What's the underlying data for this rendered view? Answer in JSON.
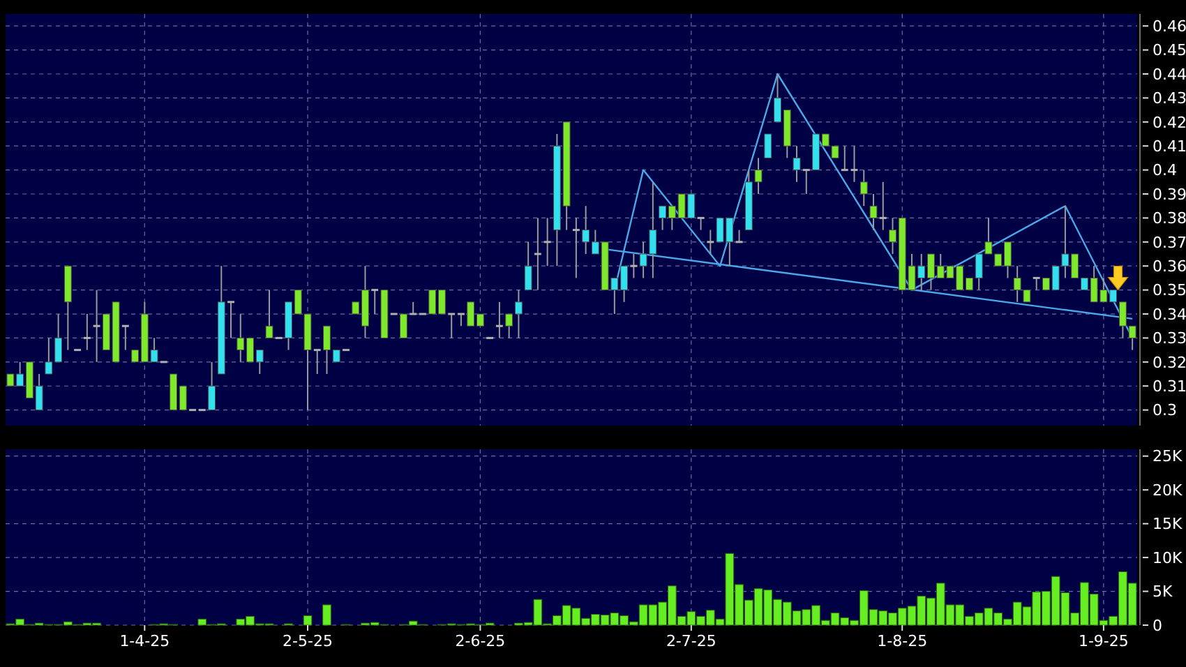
{
  "chart_data": [
    {
      "type": "candlestick",
      "tick_labels": "y",
      "grid": true,
      "categories": [
        null,
        null,
        null,
        null,
        null,
        null,
        null,
        null,
        null,
        null,
        null,
        null,
        null,
        null,
        null,
        null,
        null,
        null,
        null,
        null,
        null,
        null,
        null,
        null,
        null,
        null,
        null,
        null,
        null,
        null,
        null,
        null,
        null,
        null,
        null,
        null,
        null,
        null,
        null,
        null,
        null,
        null,
        null,
        null,
        null,
        null,
        null,
        null,
        null,
        null,
        null,
        null,
        null,
        null,
        null,
        null,
        null,
        null,
        null,
        null,
        null,
        null,
        null,
        null,
        null,
        null,
        null,
        null,
        null,
        null,
        null,
        null,
        null,
        null,
        null,
        null,
        null,
        null,
        null,
        null,
        null,
        null,
        null,
        null,
        null,
        null,
        null,
        null,
        null,
        null,
        null,
        null,
        null,
        null,
        null,
        null,
        null,
        null,
        null,
        null,
        null,
        null,
        null,
        null,
        null,
        null,
        null,
        null,
        null,
        null,
        null,
        null,
        null,
        null,
        null,
        null,
        null,
        null
      ],
      "ohlc": [
        [
          0.315,
          0.315,
          0.31,
          0.31
        ],
        [
          0.31,
          0.32,
          0.31,
          0.315
        ],
        [
          0.32,
          0.32,
          0.305,
          0.305
        ],
        [
          0.3,
          0.315,
          0.3,
          0.31
        ],
        [
          0.315,
          0.33,
          0.315,
          0.32
        ],
        [
          0.32,
          0.34,
          0.32,
          0.33
        ],
        [
          0.36,
          0.36,
          0.325,
          0.345
        ],
        [
          0.325,
          0.325,
          0.325,
          0.325
        ],
        [
          0.33,
          0.34,
          0.325,
          0.33
        ],
        [
          0.335,
          0.35,
          0.32,
          0.335
        ],
        [
          0.34,
          0.34,
          0.325,
          0.325
        ],
        [
          0.345,
          0.345,
          0.32,
          0.32
        ],
        [
          0.335,
          0.335,
          0.325,
          0.335
        ],
        [
          0.325,
          0.325,
          0.32,
          0.32
        ],
        [
          0.34,
          0.345,
          0.32,
          0.32
        ],
        [
          0.32,
          0.33,
          0.32,
          0.325
        ],
        [
          0.32,
          0.32,
          0.32,
          0.32
        ],
        [
          0.315,
          0.315,
          0.3,
          0.3
        ],
        [
          0.31,
          0.31,
          0.3,
          0.3
        ],
        [
          0.3,
          0.3,
          0.3,
          0.3
        ],
        [
          0.3,
          0.3,
          0.3,
          0.3
        ],
        [
          0.3,
          0.32,
          0.3,
          0.31
        ],
        [
          0.315,
          0.36,
          0.315,
          0.345
        ],
        [
          0.345,
          0.345,
          0.33,
          0.345
        ],
        [
          0.33,
          0.34,
          0.32,
          0.325
        ],
        [
          0.33,
          0.33,
          0.32,
          0.32
        ],
        [
          0.32,
          0.325,
          0.315,
          0.325
        ],
        [
          0.335,
          0.35,
          0.33,
          0.33
        ],
        [
          0.33,
          0.33,
          0.33,
          0.33
        ],
        [
          0.33,
          0.345,
          0.325,
          0.345
        ],
        [
          0.35,
          0.35,
          0.34,
          0.34
        ],
        [
          0.34,
          0.34,
          0.3,
          0.325
        ],
        [
          0.325,
          0.325,
          0.315,
          0.325
        ],
        [
          0.335,
          0.335,
          0.315,
          0.325
        ],
        [
          0.32,
          0.325,
          0.32,
          0.325
        ],
        [
          0.325,
          0.325,
          0.325,
          0.325
        ],
        [
          0.345,
          0.345,
          0.34,
          0.34
        ],
        [
          0.35,
          0.36,
          0.33,
          0.335
        ],
        [
          0.35,
          0.35,
          0.34,
          0.35
        ],
        [
          0.35,
          0.35,
          0.33,
          0.33
        ],
        [
          0.34,
          0.34,
          0.34,
          0.34
        ],
        [
          0.34,
          0.34,
          0.33,
          0.33
        ],
        [
          0.34,
          0.345,
          0.34,
          0.34
        ],
        [
          0.34,
          0.34,
          0.34,
          0.34
        ],
        [
          0.35,
          0.35,
          0.34,
          0.34
        ],
        [
          0.35,
          0.35,
          0.34,
          0.34
        ],
        [
          0.34,
          0.34,
          0.33,
          0.34
        ],
        [
          0.34,
          0.34,
          0.335,
          0.34
        ],
        [
          0.345,
          0.345,
          0.335,
          0.335
        ],
        [
          0.34,
          0.34,
          0.335,
          0.335
        ],
        [
          0.33,
          0.33,
          0.33,
          0.33
        ],
        [
          0.335,
          0.345,
          0.33,
          0.335
        ],
        [
          0.34,
          0.34,
          0.33,
          0.335
        ],
        [
          0.34,
          0.35,
          0.33,
          0.345
        ],
        [
          0.35,
          0.37,
          0.35,
          0.36
        ],
        [
          0.365,
          0.38,
          0.35,
          0.365
        ],
        [
          0.37,
          0.38,
          0.36,
          0.37
        ],
        [
          0.375,
          0.415,
          0.36,
          0.41
        ],
        [
          0.42,
          0.42,
          0.375,
          0.385
        ],
        [
          0.375,
          0.38,
          0.355,
          0.375
        ],
        [
          0.37,
          0.385,
          0.365,
          0.375
        ],
        [
          0.365,
          0.375,
          0.365,
          0.37
        ],
        [
          0.37,
          0.37,
          0.35,
          0.35
        ],
        [
          0.35,
          0.355,
          0.34,
          0.355
        ],
        [
          0.35,
          0.36,
          0.345,
          0.36
        ],
        [
          0.36,
          0.365,
          0.355,
          0.36
        ],
        [
          0.36,
          0.37,
          0.355,
          0.365
        ],
        [
          0.365,
          0.395,
          0.355,
          0.375
        ],
        [
          0.38,
          0.385,
          0.375,
          0.385
        ],
        [
          0.385,
          0.385,
          0.375,
          0.38
        ],
        [
          0.39,
          0.39,
          0.38,
          0.38
        ],
        [
          0.38,
          0.39,
          0.38,
          0.39
        ],
        [
          0.38,
          0.38,
          0.375,
          0.38
        ],
        [
          0.37,
          0.375,
          0.365,
          0.37
        ],
        [
          0.37,
          0.38,
          0.37,
          0.38
        ],
        [
          0.37,
          0.38,
          0.36,
          0.38
        ],
        [
          0.37,
          0.375,
          0.37,
          0.37
        ],
        [
          0.375,
          0.4,
          0.375,
          0.395
        ],
        [
          0.4,
          0.405,
          0.39,
          0.395
        ],
        [
          0.405,
          0.415,
          0.405,
          0.415
        ],
        [
          0.42,
          0.44,
          0.42,
          0.43
        ],
        [
          0.425,
          0.425,
          0.405,
          0.41
        ],
        [
          0.4,
          0.41,
          0.395,
          0.405
        ],
        [
          0.4,
          0.4,
          0.39,
          0.4
        ],
        [
          0.4,
          0.415,
          0.4,
          0.415
        ],
        [
          0.415,
          0.415,
          0.41,
          0.41
        ],
        [
          0.41,
          0.41,
          0.405,
          0.405
        ],
        [
          0.4,
          0.41,
          0.4,
          0.4
        ],
        [
          0.4,
          0.41,
          0.395,
          0.4
        ],
        [
          0.395,
          0.4,
          0.385,
          0.39
        ],
        [
          0.385,
          0.39,
          0.375,
          0.38
        ],
        [
          0.38,
          0.395,
          0.375,
          0.38
        ],
        [
          0.375,
          0.38,
          0.365,
          0.37
        ],
        [
          0.38,
          0.38,
          0.35,
          0.35
        ],
        [
          0.36,
          0.365,
          0.35,
          0.35
        ],
        [
          0.355,
          0.365,
          0.35,
          0.36
        ],
        [
          0.365,
          0.365,
          0.35,
          0.355
        ],
        [
          0.36,
          0.365,
          0.355,
          0.355
        ],
        [
          0.36,
          0.36,
          0.355,
          0.355
        ],
        [
          0.36,
          0.36,
          0.35,
          0.35
        ],
        [
          0.355,
          0.355,
          0.35,
          0.35
        ],
        [
          0.355,
          0.365,
          0.35,
          0.365
        ],
        [
          0.37,
          0.38,
          0.365,
          0.365
        ],
        [
          0.365,
          0.365,
          0.36,
          0.36
        ],
        [
          0.37,
          0.37,
          0.355,
          0.36
        ],
        [
          0.355,
          0.36,
          0.345,
          0.35
        ],
        [
          0.35,
          0.35,
          0.345,
          0.345
        ],
        [
          0.355,
          0.355,
          0.35,
          0.355
        ],
        [
          0.355,
          0.355,
          0.35,
          0.35
        ],
        [
          0.35,
          0.36,
          0.35,
          0.36
        ],
        [
          0.36,
          0.385,
          0.355,
          0.365
        ],
        [
          0.365,
          0.365,
          0.355,
          0.355
        ],
        [
          0.35,
          0.355,
          0.35,
          0.355
        ],
        [
          0.355,
          0.36,
          0.345,
          0.345
        ],
        [
          0.35,
          0.355,
          0.345,
          0.345
        ],
        [
          0.345,
          0.35,
          0.345,
          0.35
        ],
        [
          0.345,
          0.345,
          0.33,
          0.335
        ],
        [
          0.335,
          0.335,
          0.325,
          0.33
        ]
      ],
      "colors": [
        "#7ee82a",
        "#33e0f0",
        "#7ee82a",
        "#33e0f0",
        "#33e0f0",
        "#33e0f0",
        "#7ee82a",
        "#a0a0a0",
        "#a0a0a0",
        "#a0a0a0",
        "#7ee82a",
        "#7ee82a",
        "#a0a0a0",
        "#7ee82a",
        "#7ee82a",
        "#33e0f0",
        "#a0a0a0",
        "#7ee82a",
        "#7ee82a",
        "#a0a0a0",
        "#a0a0a0",
        "#33e0f0",
        "#33e0f0",
        "#a0a0a0",
        "#7ee82a",
        "#7ee82a",
        "#33e0f0",
        "#7ee82a",
        "#a0a0a0",
        "#33e0f0",
        "#7ee82a",
        "#7ee82a",
        "#a0a0a0",
        "#7ee82a",
        "#33e0f0",
        "#a0a0a0",
        "#7ee82a",
        "#7ee82a",
        "#a0a0a0",
        "#7ee82a",
        "#a0a0a0",
        "#7ee82a",
        "#a0a0a0",
        "#a0a0a0",
        "#7ee82a",
        "#7ee82a",
        "#a0a0a0",
        "#a0a0a0",
        "#7ee82a",
        "#7ee82a",
        "#a0a0a0",
        "#a0a0a0",
        "#7ee82a",
        "#33e0f0",
        "#33e0f0",
        "#a0a0a0",
        "#a0a0a0",
        "#33e0f0",
        "#7ee82a",
        "#a0a0a0",
        "#33e0f0",
        "#33e0f0",
        "#7ee82a",
        "#33e0f0",
        "#33e0f0",
        "#a0a0a0",
        "#33e0f0",
        "#33e0f0",
        "#33e0f0",
        "#7ee82a",
        "#7ee82a",
        "#33e0f0",
        "#a0a0a0",
        "#a0a0a0",
        "#33e0f0",
        "#33e0f0",
        "#a0a0a0",
        "#33e0f0",
        "#7ee82a",
        "#33e0f0",
        "#33e0f0",
        "#7ee82a",
        "#33e0f0",
        "#a0a0a0",
        "#33e0f0",
        "#7ee82a",
        "#7ee82a",
        "#a0a0a0",
        "#a0a0a0",
        "#7ee82a",
        "#7ee82a",
        "#a0a0a0",
        "#7ee82a",
        "#7ee82a",
        "#7ee82a",
        "#33e0f0",
        "#7ee82a",
        "#7ee82a",
        "#7ee82a",
        "#7ee82a",
        "#7ee82a",
        "#33e0f0",
        "#7ee82a",
        "#7ee82a",
        "#7ee82a",
        "#7ee82a",
        "#7ee82a",
        "#a0a0a0",
        "#7ee82a",
        "#33e0f0",
        "#33e0f0",
        "#7ee82a",
        "#33e0f0",
        "#7ee82a",
        "#7ee82a",
        "#33e0f0",
        "#7ee82a",
        "#7ee82a"
      ],
      "series": [
        {
          "type": "line",
          "color": "#4aa8e8",
          "values": [
            null,
            null,
            null,
            null,
            null,
            null,
            null,
            null,
            null,
            null,
            null,
            null,
            null,
            null,
            null,
            null,
            null,
            null,
            null,
            null,
            null,
            null,
            null,
            null,
            null,
            null,
            null,
            null,
            null,
            null,
            null,
            null,
            null,
            null,
            null,
            null,
            null,
            null,
            null,
            null,
            null,
            null,
            null,
            null,
            null,
            null,
            null,
            null,
            null,
            null,
            null,
            null,
            null,
            null,
            null,
            null,
            null,
            null,
            null,
            null,
            null,
            null,
            null,
            0.35,
            null,
            null,
            0.4,
            null,
            null,
            null,
            null,
            null,
            null,
            null,
            0.36,
            null,
            null,
            null,
            null,
            null,
            0.44,
            null,
            null,
            null,
            null,
            null,
            null,
            null,
            null,
            null,
            null,
            null,
            null,
            null,
            0.35,
            null,
            null,
            null,
            null,
            null,
            null,
            null,
            null,
            null,
            null,
            null,
            null,
            null,
            null,
            null,
            0.385,
            null,
            null,
            null,
            null,
            null,
            null,
            0.33
          ]
        },
        {
          "type": "line",
          "color": "#4aa8e8",
          "values": [
            null,
            null,
            null,
            null,
            null,
            null,
            null,
            null,
            null,
            null,
            null,
            null,
            null,
            null,
            null,
            null,
            null,
            null,
            null,
            null,
            null,
            null,
            null,
            null,
            null,
            null,
            null,
            null,
            null,
            null,
            null,
            null,
            null,
            null,
            null,
            null,
            null,
            null,
            null,
            null,
            null,
            null,
            null,
            null,
            null,
            null,
            null,
            null,
            null,
            null,
            null,
            null,
            null,
            null,
            null,
            null,
            null,
            null,
            null,
            null,
            null,
            null,
            0.367,
            null,
            null,
            null,
            null,
            null,
            null,
            null,
            null,
            null,
            null,
            null,
            null,
            null,
            null,
            null,
            null,
            null,
            null,
            null,
            null,
            null,
            null,
            null,
            null,
            null,
            null,
            null,
            null,
            null,
            null,
            null,
            null,
            null,
            null,
            null,
            null,
            null,
            null,
            null,
            null,
            null,
            null,
            null,
            null,
            null,
            null,
            null,
            null,
            null,
            null,
            null,
            null,
            null,
            null,
            0.338
          ]
        }
      ],
      "ylim": [
        0.2935,
        0.465
      ],
      "yticks": [
        0.3,
        0.31,
        0.32,
        0.33,
        0.34,
        0.35,
        0.36,
        0.37,
        0.38,
        0.39,
        0.4,
        0.41,
        0.42,
        0.43,
        0.44,
        0.45,
        0.46
      ]
    },
    {
      "type": "bar",
      "grid": true,
      "color": "#66ee22",
      "categories": [
        null,
        null,
        null,
        null,
        null,
        null,
        null,
        null,
        null,
        null,
        null,
        null,
        null,
        null,
        "1-4-25",
        null,
        null,
        null,
        null,
        null,
        null,
        null,
        null,
        null,
        null,
        null,
        null,
        null,
        null,
        null,
        null,
        "2-5-25",
        null,
        null,
        null,
        null,
        null,
        null,
        null,
        null,
        null,
        null,
        null,
        null,
        null,
        null,
        null,
        null,
        null,
        "2-6-25",
        null,
        null,
        null,
        null,
        null,
        null,
        null,
        null,
        null,
        null,
        null,
        null,
        null,
        null,
        null,
        null,
        null,
        null,
        null,
        null,
        null,
        "2-7-25",
        null,
        null,
        null,
        null,
        null,
        null,
        null,
        null,
        null,
        null,
        null,
        null,
        null,
        null,
        null,
        null,
        null,
        null,
        null,
        null,
        null,
        "1-8-25",
        null,
        null,
        null,
        null,
        null,
        null,
        null,
        null,
        null,
        null,
        null,
        null,
        null,
        null,
        null,
        null,
        null,
        null,
        null,
        null,
        "1-9-25",
        null,
        null,
        null
      ],
      "values": [
        200,
        900,
        100,
        300,
        100,
        100,
        500,
        100,
        300,
        300,
        0,
        0,
        0,
        0,
        0,
        100,
        200,
        100,
        0,
        0,
        900,
        100,
        200,
        0,
        900,
        1300,
        200,
        200,
        0,
        200,
        0,
        1400,
        0,
        3000,
        0,
        100,
        0,
        300,
        400,
        100,
        0,
        100,
        600,
        100,
        0,
        100,
        200,
        100,
        200,
        100,
        300,
        0,
        0,
        300,
        400,
        3800,
        200,
        1400,
        2900,
        2500,
        1000,
        1600,
        1500,
        1800,
        1400,
        500,
        3000,
        3000,
        3400,
        5800,
        1300,
        2000,
        1300,
        2200,
        900,
        10600,
        6000,
        3700,
        5400,
        5200,
        3800,
        3400,
        2100,
        2300,
        2900,
        700,
        1800,
        1100,
        700,
        5100,
        2300,
        2100,
        1800,
        2500,
        2800,
        4300,
        4000,
        6200,
        3000,
        3000,
        1300,
        1800,
        2500,
        1800,
        900,
        3400,
        2700,
        4900,
        5000,
        7200,
        4800,
        1800,
        6300,
        4600,
        700,
        1300,
        7900,
        6200
      ],
      "ylim": [
        0,
        26000
      ],
      "yticks": [
        0,
        {
          "value": 5000,
          "label": "5K"
        },
        {
          "value": 10000,
          "label": "10K"
        },
        {
          "value": 15000,
          "label": "15K"
        },
        {
          "value": 20000,
          "label": "20K"
        },
        {
          "value": 25000,
          "label": "25K"
        }
      ]
    }
  ]
}
